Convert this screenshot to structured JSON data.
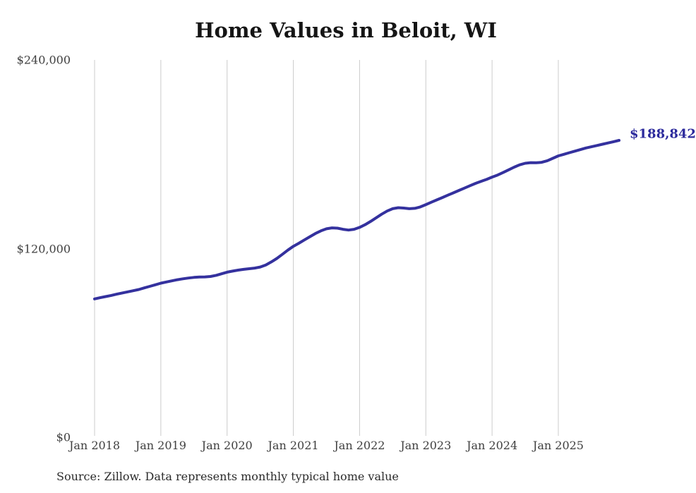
{
  "title": "Home Values in Beloit, WI",
  "source_note": "Source: Zillow. Data represents monthly typical home value",
  "colors": {
    "line": "#34319e",
    "end_label_text": "#2c2a9c",
    "gridline": "#cccccc",
    "title_text": "#151515",
    "axis_text": "#3f3f3f",
    "source_text": "#2b2b2b",
    "background": "#ffffff"
  },
  "chart_data": {
    "type": "line",
    "title": "Home Values in Beloit, WI",
    "xlabel": "",
    "ylabel": "",
    "ylim": [
      0,
      240000
    ],
    "grid": "vertical-only",
    "legend": "none",
    "interval": "monthly",
    "x_range": "Jan 2018 to Dec 2025",
    "x_ticks": [
      "Jan 2018",
      "Jan 2019",
      "Jan 2020",
      "Jan 2021",
      "Jan 2022",
      "Jan 2023",
      "Jan 2024",
      "Jan 2025"
    ],
    "y_ticks": [
      {
        "label": "$0",
        "value": 0
      },
      {
        "label": "$120,000",
        "value": 120000
      },
      {
        "label": "$240,000",
        "value": 240000
      }
    ],
    "end_value": 188842,
    "end_value_label": "$188,842",
    "series": [
      {
        "name": "Typical home value",
        "values": [
          88000,
          88800,
          89500,
          90200,
          91000,
          91800,
          92500,
          93200,
          94000,
          95000,
          96000,
          97000,
          98000,
          98800,
          99500,
          100200,
          100800,
          101300,
          101700,
          101900,
          102000,
          102300,
          103000,
          104000,
          105000,
          105700,
          106300,
          106800,
          107200,
          107600,
          108300,
          109600,
          111500,
          113700,
          116300,
          119000,
          121500,
          123400,
          125500,
          127600,
          129600,
          131300,
          132600,
          133200,
          133000,
          132300,
          131800,
          132300,
          133500,
          135200,
          137300,
          139600,
          141900,
          143900,
          145400,
          146000,
          145800,
          145400,
          145600,
          146500,
          148000,
          149500,
          151000,
          152500,
          154000,
          155500,
          157000,
          158500,
          160000,
          161500,
          162800,
          164000,
          165500,
          166800,
          168400,
          170100,
          171800,
          173300,
          174300,
          174700,
          174600,
          174900,
          175900,
          177400,
          179000,
          180000,
          181000,
          182000,
          183000,
          184000,
          184800,
          185600,
          186400,
          187200,
          188000,
          188842
        ]
      }
    ]
  }
}
